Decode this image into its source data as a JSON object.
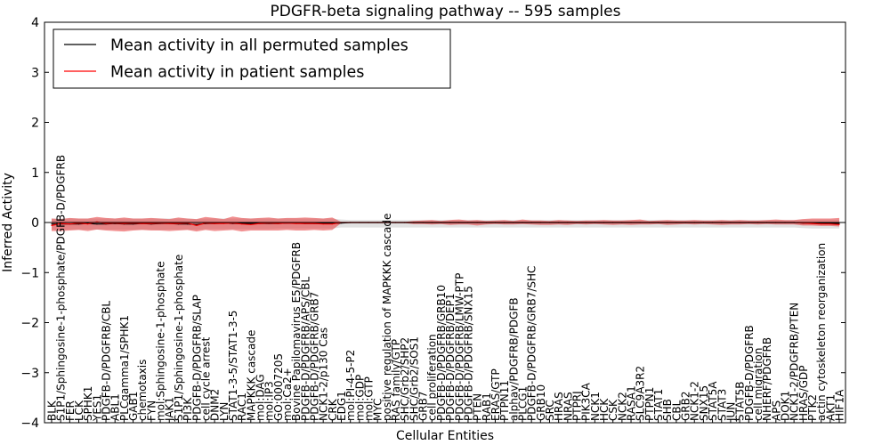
{
  "chart_data": {
    "type": "line",
    "title": "PDGFR-beta signaling pathway -- 595 samples",
    "xlabel": "Cellular Entities",
    "ylabel": "Inferred Activity",
    "ylim": [
      -4,
      4
    ],
    "yticks": [
      -4,
      -3,
      -2,
      -1,
      0,
      1,
      2,
      3,
      4
    ],
    "grid": false,
    "legend_position": "upper-left",
    "categories": [
      "BLK",
      "S1P1/Sphingosine-1-phosphate/PDGFB-D/PDGFRB",
      "FER",
      "LCK",
      "SPHK1",
      "YES1",
      "PDGFB-D/PDGFRB/CBL",
      "ABL1",
      "PLCgamma1/SPHK1",
      "GAB1",
      "chemotaxis",
      "FYN",
      "mol:Sphingosine-1-phosphate",
      "JAK1",
      "S1P1/Sphingosine-1-phosphate",
      "PI3K",
      "PDGFB-D/PDGFRB/SLAP",
      "cell cycle arrest",
      "DNM2",
      "LYN",
      "STAT1-3-5/STAT1-3-5",
      "RAC1",
      "MAPKKK cascade",
      "mol:DAG",
      "mol:IP3",
      "GO:0007205",
      "mol:Ca2+",
      "Bovine Papilomavirus E5/PDGFRB",
      "PDGFB-D/PDGFRB/APS/CBL",
      "PDGFB-D/PDGFRB/GRB7",
      "NCK1-2/p130 Cas",
      "CRK",
      "EDG1",
      "mol:PI-4-5-P2",
      "mol:GDP",
      "mol:GTP",
      "MYC",
      "positive regulation of MAPKKK cascade",
      "RAS family/GTP",
      "SHC/Grb2/SHP2",
      "SHC/Grb2/SOS1",
      "GRB7",
      "cell proliferation",
      "PDGFB-D/PDGFRB/GRB10",
      "PDGFB-D/PDGFRB/DEP1",
      "PDGFB-D/PDGFRB/LMW-PTP",
      "PDGFB-D/PDGFRB/SNX15",
      "PTEN",
      "RAB1",
      "ERAS/GTP",
      "PTPN11",
      "alphav/PDGFRB/PDGFB",
      "PLCG1",
      "PDGFB-D/PDGFRB/GRB7/SHC",
      "GRB10",
      "SRC",
      "HRAS",
      "NRAS",
      "PTPRJ",
      "PIK3CA",
      "NCK1",
      "HCK",
      "CSK",
      "NCK2",
      "RASA1",
      "SLC9A3R2",
      "PTPN1",
      "STAT1",
      "SHB",
      "CBL",
      "GRB2",
      "NCK1-2",
      "SNX15",
      "STAT5A",
      "STAT3",
      "JUN",
      "STAT5B",
      "PDGFB-D/PDGFRB",
      "cell migration",
      "NHERF/PDGFRB",
      "APS",
      "DOK1",
      "NCK1-2/PDGFRB/PTEN",
      "HRAS/GDP",
      "PTK2",
      "actin cytoskeleton reorganization",
      "AKT1",
      "HIF1A"
    ],
    "series": [
      {
        "name": "Mean activity in all permuted samples",
        "color": "#000000",
        "values": [
          -0.03,
          -0.03,
          -0.03,
          -0.03,
          -0.02,
          -0.03,
          -0.03,
          -0.02,
          -0.03,
          -0.03,
          -0.02,
          -0.03,
          -0.02,
          -0.02,
          -0.03,
          -0.03,
          -0.04,
          -0.02,
          -0.02,
          -0.01,
          -0.02,
          -0.02,
          -0.02,
          -0.02,
          -0.02,
          -0.02,
          -0.01,
          -0.01,
          -0.02,
          -0.02,
          -0.02,
          -0.02,
          -0.01,
          0.0,
          0.0,
          0.0,
          0.0,
          0.0,
          0.0,
          0.0,
          0.0,
          0.0,
          0.0,
          0.0,
          0.0,
          0.0,
          0.0,
          0.0,
          0.0,
          0.0,
          0.0,
          0.0,
          0.0,
          0.0,
          0.0,
          0.0,
          0.0,
          0.0,
          0.0,
          0.0,
          0.0,
          0.0,
          0.0,
          0.0,
          0.0,
          0.0,
          0.0,
          0.0,
          0.0,
          0.0,
          0.0,
          0.0,
          0.0,
          0.0,
          0.0,
          0.0,
          0.0,
          0.0,
          0.0,
          0.0,
          0.0,
          0.0,
          0.0,
          -0.01,
          -0.01,
          -0.01,
          -0.02,
          -0.02
        ],
        "band": {
          "lower": [
            -0.15,
            -0.15,
            -0.14,
            -0.14,
            -0.14,
            -0.14,
            -0.14,
            -0.14,
            -0.14,
            -0.14,
            -0.14,
            -0.14,
            -0.15,
            -0.14,
            -0.14,
            -0.14,
            -0.15,
            -0.13,
            -0.13,
            -0.13,
            -0.13,
            -0.13,
            -0.13,
            -0.13,
            -0.13,
            -0.12,
            -0.12,
            -0.12,
            -0.12,
            -0.12,
            -0.12,
            -0.12,
            -0.1,
            -0.1,
            -0.1,
            -0.1,
            -0.1,
            -0.1,
            -0.1,
            -0.1,
            -0.1,
            -0.1,
            -0.1,
            -0.1,
            -0.1,
            -0.1,
            -0.1,
            -0.1,
            -0.1,
            -0.1,
            -0.1,
            -0.1,
            -0.1,
            -0.1,
            -0.1,
            -0.1,
            -0.1,
            -0.1,
            -0.1,
            -0.1,
            -0.1,
            -0.1,
            -0.1,
            -0.1,
            -0.1,
            -0.1,
            -0.1,
            -0.1,
            -0.1,
            -0.1,
            -0.1,
            -0.1,
            -0.1,
            -0.1,
            -0.1,
            -0.1,
            -0.1,
            -0.1,
            -0.1,
            -0.1,
            -0.1,
            -0.1,
            -0.1,
            -0.11,
            -0.12,
            -0.12,
            -0.12,
            -0.12
          ],
          "upper": [
            0.08,
            0.08,
            0.08,
            0.08,
            0.08,
            0.08,
            0.08,
            0.08,
            0.08,
            0.08,
            0.08,
            0.08,
            0.08,
            0.08,
            0.08,
            0.08,
            0.07,
            0.08,
            0.08,
            0.08,
            0.08,
            0.08,
            0.08,
            0.08,
            0.08,
            0.08,
            0.08,
            0.08,
            0.08,
            0.08,
            0.08,
            0.08,
            0.06,
            0.05,
            0.05,
            0.05,
            0.05,
            0.05,
            0.05,
            0.05,
            0.05,
            0.05,
            0.05,
            0.05,
            0.05,
            0.05,
            0.05,
            0.05,
            0.05,
            0.05,
            0.05,
            0.05,
            0.05,
            0.05,
            0.05,
            0.05,
            0.05,
            0.05,
            0.05,
            0.05,
            0.05,
            0.05,
            0.05,
            0.05,
            0.05,
            0.05,
            0.05,
            0.05,
            0.05,
            0.05,
            0.05,
            0.05,
            0.05,
            0.05,
            0.05,
            0.05,
            0.05,
            0.05,
            0.05,
            0.05,
            0.05,
            0.05,
            0.05,
            0.06,
            0.06,
            0.06,
            0.06,
            0.06
          ],
          "color": "#bdbdbd"
        }
      },
      {
        "name": "Mean activity in patient samples",
        "color": "#ff0000",
        "values": [
          -0.06,
          -0.02,
          -0.03,
          -0.01,
          -0.03,
          0.01,
          -0.02,
          -0.01,
          -0.02,
          -0.01,
          -0.02,
          -0.02,
          -0.01,
          -0.02,
          -0.02,
          -0.01,
          -0.06,
          -0.01,
          -0.02,
          -0.02,
          -0.01,
          -0.03,
          -0.04,
          -0.02,
          -0.01,
          -0.02,
          -0.01,
          -0.02,
          -0.02,
          -0.02,
          -0.03,
          -0.03,
          0.0,
          0.0,
          0.0,
          0.0,
          0.0,
          0.0,
          0.0,
          0.0,
          0.0,
          0.0,
          0.0,
          0.0,
          0.0,
          0.0,
          0.0,
          0.0,
          0.0,
          0.0,
          0.0,
          0.0,
          0.0,
          0.0,
          0.0,
          0.0,
          0.0,
          0.0,
          0.0,
          0.0,
          0.0,
          0.0,
          0.0,
          0.0,
          0.0,
          0.0,
          0.0,
          0.0,
          0.0,
          0.0,
          0.0,
          0.0,
          0.0,
          0.0,
          0.0,
          0.0,
          0.0,
          0.0,
          0.0,
          0.0,
          0.0,
          0.0,
          0.0,
          -0.01,
          -0.02,
          -0.03,
          -0.03,
          -0.04
        ],
        "band": {
          "lower": [
            -0.17,
            -0.17,
            -0.16,
            -0.15,
            -0.17,
            -0.14,
            -0.16,
            -0.17,
            -0.18,
            -0.16,
            -0.15,
            -0.16,
            -0.16,
            -0.17,
            -0.16,
            -0.15,
            -0.18,
            -0.15,
            -0.17,
            -0.16,
            -0.15,
            -0.18,
            -0.16,
            -0.16,
            -0.16,
            -0.16,
            -0.15,
            -0.16,
            -0.16,
            -0.15,
            -0.16,
            -0.15,
            -0.01,
            -0.01,
            -0.01,
            -0.01,
            -0.01,
            -0.01,
            -0.01,
            -0.01,
            -0.03,
            -0.03,
            -0.04,
            -0.03,
            -0.05,
            -0.04,
            -0.04,
            -0.06,
            -0.04,
            -0.03,
            -0.04,
            -0.04,
            -0.03,
            -0.04,
            -0.05,
            -0.05,
            -0.04,
            -0.05,
            -0.03,
            -0.04,
            -0.03,
            -0.04,
            -0.05,
            -0.04,
            -0.05,
            -0.04,
            -0.04,
            -0.03,
            -0.05,
            -0.04,
            -0.03,
            -0.04,
            -0.03,
            -0.04,
            -0.05,
            -0.04,
            -0.04,
            -0.03,
            -0.04,
            -0.03,
            -0.04,
            -0.04,
            -0.04,
            -0.06,
            -0.06,
            -0.07,
            -0.07,
            -0.08
          ],
          "upper": [
            0.08,
            0.07,
            0.09,
            0.08,
            0.08,
            0.11,
            0.09,
            0.08,
            0.1,
            0.08,
            0.08,
            0.09,
            0.08,
            0.07,
            0.1,
            0.08,
            0.07,
            0.11,
            0.09,
            0.07,
            0.12,
            0.09,
            0.08,
            0.09,
            0.1,
            0.08,
            0.09,
            0.09,
            0.1,
            0.09,
            0.08,
            0.1,
            0.01,
            0.01,
            0.01,
            0.01,
            0.01,
            0.01,
            0.01,
            0.01,
            0.03,
            0.04,
            0.05,
            0.03,
            0.05,
            0.06,
            0.04,
            0.05,
            0.03,
            0.04,
            0.05,
            0.03,
            0.06,
            0.04,
            0.04,
            0.03,
            0.05,
            0.04,
            0.03,
            0.04,
            0.04,
            0.05,
            0.04,
            0.04,
            0.05,
            0.06,
            0.03,
            0.04,
            0.05,
            0.04,
            0.04,
            0.05,
            0.04,
            0.04,
            0.05,
            0.04,
            0.05,
            0.04,
            0.04,
            0.05,
            0.06,
            0.05,
            0.05,
            0.07,
            0.08,
            0.08,
            0.08,
            0.09
          ],
          "color": "#e8383b"
        }
      }
    ]
  }
}
